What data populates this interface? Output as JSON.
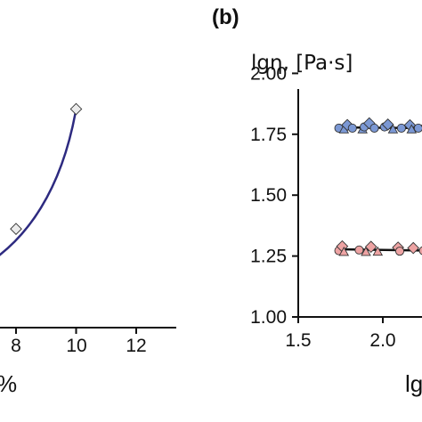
{
  "chart_data": [
    {
      "panel": "a",
      "type": "line",
      "x_tick_labels": [
        "8",
        "10",
        "12"
      ],
      "x_visible_range": [
        5.4,
        13.7
      ],
      "xlabel_fragment": "%",
      "y_visible_range": [
        0.0,
        1.0
      ],
      "series": [
        {
          "x": [
            8,
            10
          ],
          "y": [
            0.42,
            0.93
          ],
          "marker": "diamond",
          "marker_fill": "#ebebeb",
          "line_color": "#2d2a80"
        }
      ],
      "fit_curve": {
        "x_start": 6.9,
        "x_end": 10.0,
        "y_start": 0.26,
        "y_end": 0.93
      },
      "grid": false
    },
    {
      "panel": "b",
      "type": "scatter",
      "panel_label": "(b)",
      "ylabel": "lgη, [Pa·s]",
      "xlabel_fragment": "lg",
      "x_tick_labels": [
        "1.5",
        "2.0"
      ],
      "x_ticks": [
        1.5,
        2.0
      ],
      "xlim": [
        1.5,
        2.3
      ],
      "y_tick_labels": [
        "1.00",
        "1.25",
        "1.50",
        "1.75",
        "2.00"
      ],
      "y_ticks": [
        1.0,
        1.25,
        1.5,
        1.75,
        2.0
      ],
      "ylim": [
        1.0,
        2.05
      ],
      "grid": false,
      "series": [
        {
          "group": "upper",
          "color": "#7b98d4",
          "fit_line": {
            "x": [
              1.73,
              2.3
            ],
            "y": [
              1.778,
              1.775
            ]
          },
          "points": [
            {
              "x": 1.74,
              "y": 1.775,
              "marker": "circle"
            },
            {
              "x": 1.77,
              "y": 1.77,
              "marker": "triangle"
            },
            {
              "x": 1.79,
              "y": 1.788,
              "marker": "diamond"
            },
            {
              "x": 1.82,
              "y": 1.775,
              "marker": "circle"
            },
            {
              "x": 1.88,
              "y": 1.77,
              "marker": "triangle"
            },
            {
              "x": 1.89,
              "y": 1.78,
              "marker": "circle"
            },
            {
              "x": 1.92,
              "y": 1.795,
              "marker": "diamond"
            },
            {
              "x": 1.95,
              "y": 1.775,
              "marker": "circle"
            },
            {
              "x": 2.01,
              "y": 1.78,
              "marker": "circle"
            },
            {
              "x": 2.03,
              "y": 1.79,
              "marker": "diamond"
            },
            {
              "x": 2.06,
              "y": 1.77,
              "marker": "triangle"
            },
            {
              "x": 2.11,
              "y": 1.775,
              "marker": "circle"
            },
            {
              "x": 2.16,
              "y": 1.787,
              "marker": "diamond"
            },
            {
              "x": 2.17,
              "y": 1.77,
              "marker": "triangle"
            },
            {
              "x": 2.21,
              "y": 1.775,
              "marker": "circle"
            },
            {
              "x": 2.26,
              "y": 1.785,
              "marker": "diamond"
            }
          ]
        },
        {
          "group": "lower",
          "color": "#eda3a3",
          "fit_line": {
            "x": [
              1.73,
              2.3
            ],
            "y": [
              1.278,
              1.272
            ]
          },
          "points": [
            {
              "x": 1.74,
              "y": 1.272,
              "marker": "circle"
            },
            {
              "x": 1.76,
              "y": 1.29,
              "marker": "diamond"
            },
            {
              "x": 1.77,
              "y": 1.267,
              "marker": "triangle"
            },
            {
              "x": 1.86,
              "y": 1.275,
              "marker": "circle"
            },
            {
              "x": 1.9,
              "y": 1.267,
              "marker": "triangle"
            },
            {
              "x": 1.93,
              "y": 1.288,
              "marker": "diamond"
            },
            {
              "x": 1.97,
              "y": 1.268,
              "marker": "triangle"
            },
            {
              "x": 2.09,
              "y": 1.285,
              "marker": "diamond"
            },
            {
              "x": 2.1,
              "y": 1.27,
              "marker": "circle"
            },
            {
              "x": 2.18,
              "y": 1.283,
              "marker": "diamond"
            },
            {
              "x": 2.24,
              "y": 1.272,
              "marker": "circle"
            }
          ]
        }
      ]
    }
  ]
}
